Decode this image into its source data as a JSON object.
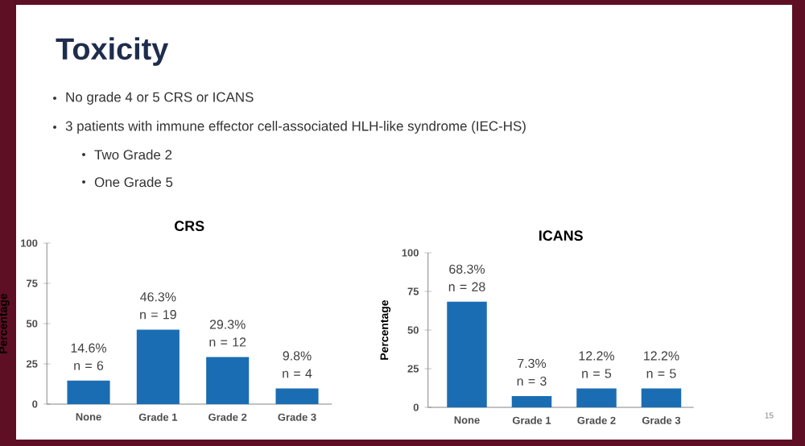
{
  "chart_data": [
    {
      "type": "other",
      "title": "Toxicity",
      "annotations": [
        "No grade 4 or 5 CRS or ICANS",
        "3 patients with immune effector cell-associated HLH-like syndrome (IEC-HS)",
        "Two Grade 2",
        "One Grade 5",
        "15"
      ]
    },
    {
      "type": "bar",
      "title": "CRS",
      "ylabel": "Percentage",
      "categories": [
        "None",
        "Grade 1",
        "Grade 2",
        "Grade 3"
      ],
      "values": [
        14.6,
        46.3,
        29.3,
        9.8
      ],
      "color": "#1b6db3",
      "value_labels": [
        "14.6% n = 6",
        "46.3% n = 19",
        "29.3% n = 12",
        "9.8% n = 4"
      ],
      "ylim": [
        0,
        100
      ],
      "yticks": [
        0,
        25,
        50,
        75,
        100
      ]
    },
    {
      "type": "bar",
      "title": "ICANS",
      "ylabel": "Percentage",
      "categories": [
        "None",
        "Grade 1",
        "Grade 2",
        "Grade 3"
      ],
      "values": [
        68.3,
        7.3,
        12.2,
        12.2
      ],
      "color": "#1b6db3",
      "value_labels": [
        "68.3% n = 28",
        "7.3% n = 3",
        "12.2% n = 5",
        "12.2% n = 5"
      ],
      "ylim": [
        0,
        100
      ],
      "yticks": [
        0,
        25,
        50,
        75,
        100
      ]
    }
  ]
}
